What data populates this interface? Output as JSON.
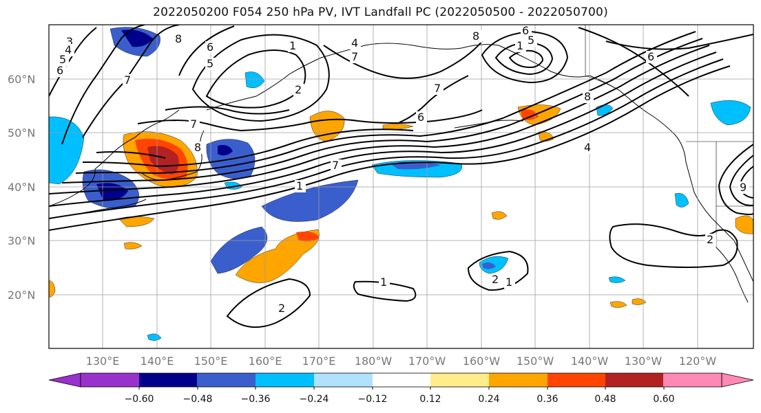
{
  "title": "2022050200 F054 250 hPa PV, IVT Landfall PC (2022050500 - 2022050700)",
  "lat_labels": [
    "60°N",
    "50°N",
    "40°N",
    "30°N",
    "20°N"
  ],
  "lon_labels": [
    "130°E",
    "140°E",
    "150°E",
    "160°E",
    "170°E",
    "180°W",
    "170°W",
    "160°W",
    "150°W",
    "140°W",
    "130°W",
    "120°W"
  ],
  "colorbar": {
    "colors": [
      "#9932CC",
      "#00008B",
      "#3A5FCD",
      "#00BFFF",
      "#B0E2FF",
      "#FFFFFF",
      "#FFEC8B",
      "#FFA500",
      "#FF4500",
      "#B22222",
      "#FF89B4"
    ],
    "tick_labels": [
      "−0.60",
      "−0.48",
      "−0.36",
      "−0.24",
      "−0.12",
      "0.12",
      "0.24",
      "0.36",
      "0.48",
      "0.60"
    ]
  },
  "contour_labels": [
    "3",
    "4",
    "5",
    "6",
    "7",
    "8",
    "1",
    "2",
    "6",
    "5",
    "4",
    "7",
    "6",
    "8",
    "1",
    "5",
    "7",
    "6",
    "8",
    "7",
    "4",
    "8",
    "6",
    "7",
    "1",
    "2",
    "1",
    "2",
    "1",
    "2",
    "9"
  ]
}
